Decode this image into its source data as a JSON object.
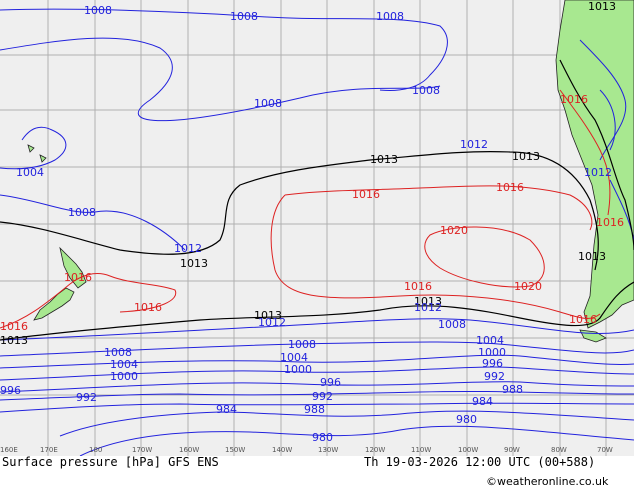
{
  "title": "Surface pressure [hPa] GFS ENS",
  "valid_time": "Th 19-03-2026 12:00 UTC (00+588)",
  "credit": "©weatheronline.co.uk",
  "longitudes": [
    "160E",
    "170E",
    "180",
    "170W",
    "160W",
    "150W",
    "140W",
    "130W",
    "120W",
    "110W",
    "100W",
    "90W",
    "80W",
    "70W"
  ],
  "isobar_labels": {
    "l1013_a": "1013",
    "l1013_b": "1013",
    "l1013_c": "1013",
    "l1013_d": "1013",
    "l1013_e": "1013",
    "l1013_f": "1013",
    "l1013_g": "1013",
    "l1013_h": "1013",
    "l1016_a": "1016",
    "l1016_b": "1016",
    "l1016_c": "1016",
    "l1016_d": "1016",
    "l1016_e": "1016",
    "l1016_f": "1016",
    "l1016_g": "1016",
    "l1016_h": "1016",
    "l1020_a": "1020",
    "l1020_b": "1020",
    "l1012_a": "1012",
    "l1012_b": "1012",
    "l1012_c": "1012",
    "l1012_d": "1012",
    "l1012_e": "1012",
    "l1008_a": "1008",
    "l1008_b": "1008",
    "l1008_c": "1008",
    "l1008_d": "1008",
    "l1008_e": "1008",
    "l1008_f": "1008",
    "l1008_g": "1008",
    "l1008_h": "1008",
    "l1008_i": "1008",
    "l1004_a": "1004",
    "l1004_b": "1004",
    "l1004_c": "1004",
    "l1004_d": "1004",
    "l1000_a": "1000",
    "l1000_b": "1000",
    "l1000_c": "1000",
    "l996_a": "996",
    "l996_b": "996",
    "l996_c": "996",
    "l992_a": "992",
    "l992_b": "992",
    "l992_c": "992",
    "l988_a": "988",
    "l988_b": "988",
    "l984_a": "984",
    "l984_b": "984",
    "l980_a": "980",
    "l980_b": "980"
  },
  "colors": {
    "ocean": "#efefef",
    "land": "#a8e890",
    "grid": "#b0b0b0",
    "isobar_low": "#2222dd",
    "isobar_mid": "#000000",
    "isobar_high": "#dd2222",
    "coast": "#222222"
  }
}
